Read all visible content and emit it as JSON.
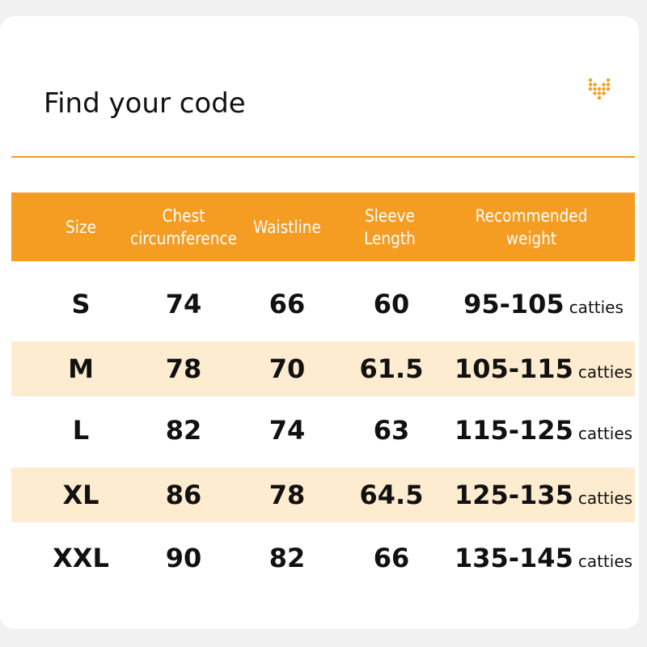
{
  "title": "Find your code",
  "brand_color": "#f59c22",
  "band_color": "#fdeccf",
  "logo_icon": "orange-dot-heart-logo",
  "headers": [
    "Size",
    "Chest circumference",
    "Waistline",
    "Sleeve Length",
    "Recommended weight"
  ],
  "unit": "catties",
  "rows": [
    {
      "size": "S",
      "chest": "74",
      "waist": "66",
      "sleeve": "60",
      "weight": "95-105"
    },
    {
      "size": "M",
      "chest": "78",
      "waist": "70",
      "sleeve": "61.5",
      "weight": "105-115"
    },
    {
      "size": "L",
      "chest": "82",
      "waist": "74",
      "sleeve": "63",
      "weight": "115-125"
    },
    {
      "size": "XL",
      "chest": "86",
      "waist": "78",
      "sleeve": "64.5",
      "weight": "125-135"
    },
    {
      "size": "XXL",
      "chest": "90",
      "waist": "82",
      "sleeve": "66",
      "weight": "135-145"
    }
  ]
}
